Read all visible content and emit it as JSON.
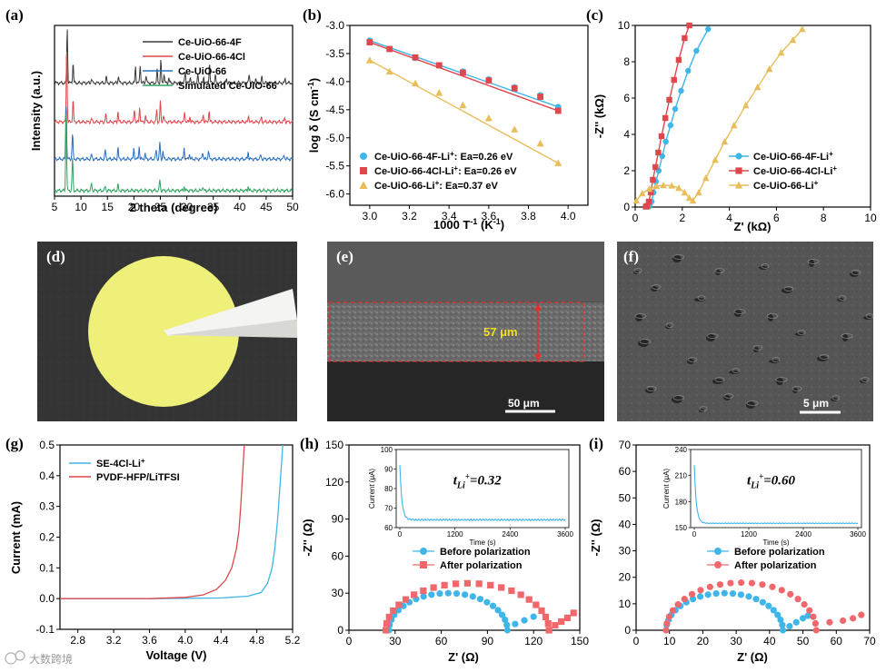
{
  "panel_labels": [
    "(a)",
    "(b)",
    "(c)",
    "(d)",
    "(e)",
    "(f)",
    "(g)",
    "(h)",
    "(i)"
  ],
  "colors": {
    "black": "#3a3a3a",
    "red": "#e0474c",
    "blue": "#2b6fbd",
    "green": "#2fa45e",
    "cyan": "#3fb5e8",
    "orange": "#e8be5a",
    "yellow": "#eef07a"
  },
  "chart_data": [
    {
      "panel": "a",
      "type": "line",
      "xlabel": "2 theta (degree)",
      "ylabel": "Intensity (a.u.)",
      "xlim": [
        5,
        50
      ],
      "xticks": [
        5,
        10,
        15,
        20,
        25,
        30,
        35,
        40,
        45,
        50
      ],
      "series": [
        {
          "name": "Ce-UiO-66-4F",
          "baseline": 3.05,
          "peaks": [
            [
              7.4,
              1.5
            ],
            [
              8.5,
              0.55
            ],
            [
              12.0,
              0.12
            ],
            [
              14.8,
              0.15
            ],
            [
              17.1,
              0.2
            ],
            [
              20.3,
              0.45
            ],
            [
              21.2,
              0.5
            ],
            [
              22.3,
              0.22
            ],
            [
              24.4,
              0.35
            ],
            [
              25.1,
              0.6
            ],
            [
              25.7,
              0.25
            ],
            [
              26.6,
              0.15
            ],
            [
              29.7,
              0.32
            ],
            [
              30.7,
              0.18
            ],
            [
              32.1,
              0.2
            ],
            [
              33.2,
              0.15
            ],
            [
              34.3,
              0.55
            ],
            [
              35.4,
              0.2
            ],
            [
              37.5,
              0.12
            ],
            [
              41.8,
              0.25
            ],
            [
              43.0,
              0.12
            ],
            [
              44.2,
              0.15
            ],
            [
              48.6,
              0.1
            ]
          ]
        },
        {
          "name": "Ce-UiO-66-4Cl",
          "baseline": 2.0,
          "peaks": [
            [
              7.3,
              2.1
            ],
            [
              8.5,
              0.6
            ],
            [
              12.0,
              0.1
            ],
            [
              14.7,
              0.2
            ],
            [
              17.0,
              0.28
            ],
            [
              20.1,
              0.35
            ],
            [
              21.1,
              0.4
            ],
            [
              22.2,
              0.18
            ],
            [
              24.3,
              0.3
            ],
            [
              25.0,
              0.55
            ],
            [
              25.6,
              0.2
            ],
            [
              29.6,
              0.28
            ],
            [
              30.6,
              0.15
            ],
            [
              33.1,
              0.2
            ],
            [
              34.2,
              0.3
            ],
            [
              41.7,
              0.18
            ],
            [
              44.1,
              0.12
            ],
            [
              48.5,
              0.12
            ]
          ]
        },
        {
          "name": "Ce-UiO-66",
          "baseline": 1.0,
          "peaks": [
            [
              7.2,
              1.6
            ],
            [
              8.4,
              0.7
            ],
            [
              12.0,
              0.12
            ],
            [
              14.6,
              0.25
            ],
            [
              17.0,
              0.3
            ],
            [
              20.0,
              0.3
            ],
            [
              21.0,
              0.35
            ],
            [
              22.1,
              0.15
            ],
            [
              24.2,
              0.25
            ],
            [
              24.9,
              0.45
            ],
            [
              25.5,
              0.22
            ],
            [
              29.5,
              0.3
            ],
            [
              30.5,
              0.15
            ],
            [
              33.0,
              0.2
            ],
            [
              34.1,
              0.25
            ],
            [
              41.6,
              0.2
            ],
            [
              44.0,
              0.12
            ],
            [
              48.4,
              0.12
            ]
          ]
        },
        {
          "name": "Simulated Ce-UiO-66",
          "baseline": 0.15,
          "peaks": [
            [
              7.2,
              2.3
            ],
            [
              8.4,
              0.9
            ],
            [
              12.0,
              0.2
            ],
            [
              14.6,
              0.12
            ],
            [
              17.0,
              0.15
            ],
            [
              24.9,
              0.3
            ],
            [
              29.5,
              0.12
            ],
            [
              33.0,
              0.12
            ],
            [
              41.6,
              0.12
            ]
          ]
        }
      ]
    },
    {
      "panel": "b",
      "type": "line",
      "xlabel": "1000 T",
      "xlabel_sup": "-1",
      "xlabel_tail": " (K",
      "xlabel_sup2": "-1",
      "xlabel_end": ")",
      "ylabel": "log δ (S cm",
      "ylabel_sup": "-1",
      "ylabel_end": ")",
      "xlim": [
        2.9,
        4.1
      ],
      "ylim": [
        -6.2,
        -3.0
      ],
      "xticks": [
        3.0,
        3.2,
        3.4,
        3.6,
        3.8,
        4.0
      ],
      "yticks": [
        -3.0,
        -3.5,
        -4.0,
        -4.5,
        -5.0,
        -5.5,
        -6.0
      ],
      "x": [
        3.0,
        3.1,
        3.23,
        3.35,
        3.47,
        3.6,
        3.73,
        3.86,
        3.95
      ],
      "series": [
        {
          "name": "Ce-UiO-66-4F-Li",
          "sup": "+",
          "tail": ": Ea=0.26 eV",
          "marker": "circle",
          "values": [
            -3.27,
            -3.42,
            -3.58,
            -3.71,
            -3.82,
            -3.96,
            -4.1,
            -4.24,
            -4.45
          ]
        },
        {
          "name": "Ce-UiO-66-4Cl-Li",
          "sup": "+",
          "tail": ": Ea=0.26 eV",
          "marker": "square",
          "values": [
            -3.3,
            -3.42,
            -3.57,
            -3.71,
            -3.84,
            -3.98,
            -4.12,
            -4.27,
            -4.52
          ]
        },
        {
          "name": "Ce-UiO-66-Li",
          "sup": "+",
          "tail": ": Ea=0.37 eV",
          "marker": "triangle",
          "values": [
            -3.62,
            -3.82,
            -4.03,
            -4.2,
            -4.42,
            -4.65,
            -4.85,
            -5.1,
            -5.45
          ]
        }
      ]
    },
    {
      "panel": "c",
      "type": "scatter",
      "xlabel": "Z' (kΩ)",
      "ylabel": "-Z'' (kΩ)",
      "xlim": [
        0,
        10
      ],
      "ylim": [
        0,
        10
      ],
      "xticks": [
        0,
        2,
        4,
        6,
        8,
        10
      ],
      "yticks": [
        0,
        2,
        4,
        6,
        8,
        10
      ],
      "series": [
        {
          "name": "Ce-UiO-66-4F-Li",
          "sup": "+",
          "marker": "circle",
          "points": [
            [
              0.58,
              0.02
            ],
            [
              0.62,
              0.08
            ],
            [
              0.7,
              0.3
            ],
            [
              0.78,
              0.8
            ],
            [
              0.88,
              1.4
            ],
            [
              1.0,
              2.0
            ],
            [
              1.15,
              2.8
            ],
            [
              1.3,
              3.6
            ],
            [
              1.5,
              4.5
            ],
            [
              1.7,
              5.4
            ],
            [
              1.95,
              6.4
            ],
            [
              2.25,
              7.5
            ],
            [
              2.6,
              8.6
            ],
            [
              3.1,
              9.8
            ]
          ]
        },
        {
          "name": "Ce-UiO-66-4Cl-Li",
          "sup": "+",
          "marker": "square",
          "points": [
            [
              0.45,
              0.02
            ],
            [
              0.5,
              0.06
            ],
            [
              0.58,
              0.3
            ],
            [
              0.66,
              0.8
            ],
            [
              0.75,
              1.5
            ],
            [
              0.86,
              2.2
            ],
            [
              0.98,
              3.0
            ],
            [
              1.12,
              3.9
            ],
            [
              1.28,
              4.9
            ],
            [
              1.45,
              5.9
            ],
            [
              1.65,
              7.0
            ],
            [
              1.85,
              8.1
            ],
            [
              2.1,
              9.3
            ],
            [
              2.3,
              10.0
            ]
          ]
        },
        {
          "name": "Ce-UiO-66-Li",
          "sup": "+",
          "marker": "triangle",
          "points": [
            [
              0.05,
              0.35
            ],
            [
              0.3,
              0.75
            ],
            [
              0.6,
              1.0
            ],
            [
              0.9,
              1.15
            ],
            [
              1.2,
              1.2
            ],
            [
              1.55,
              1.18
            ],
            [
              1.85,
              1.05
            ],
            [
              2.1,
              0.8
            ],
            [
              2.3,
              0.5
            ],
            [
              2.45,
              0.35
            ],
            [
              2.7,
              0.8
            ],
            [
              3.0,
              1.6
            ],
            [
              3.4,
              2.6
            ],
            [
              3.8,
              3.6
            ],
            [
              4.2,
              4.5
            ],
            [
              4.7,
              5.6
            ],
            [
              5.2,
              6.6
            ],
            [
              5.7,
              7.6
            ],
            [
              6.2,
              8.5
            ],
            [
              6.7,
              9.2
            ],
            [
              7.1,
              9.8
            ]
          ]
        }
      ]
    },
    {
      "panel": "g",
      "type": "line",
      "xlabel": "Voltage (V)",
      "ylabel": "Current (mA)",
      "xlim": [
        2.6,
        5.2
      ],
      "ylim": [
        -0.1,
        0.5
      ],
      "xticks": [
        2.8,
        3.2,
        3.6,
        4.0,
        4.4,
        4.8,
        5.2
      ],
      "yticks": [
        -0.1,
        0.0,
        0.1,
        0.2,
        0.3,
        0.4,
        0.5
      ],
      "series": [
        {
          "name": "SE-4Cl-Li",
          "sup": "+",
          "x": [
            2.6,
            3.6,
            4.4,
            4.7,
            4.85,
            4.92,
            4.97,
            5.0,
            5.03,
            5.06,
            5.09
          ],
          "values": [
            0.0,
            0.0,
            0.002,
            0.008,
            0.02,
            0.05,
            0.1,
            0.16,
            0.25,
            0.37,
            0.5
          ]
        },
        {
          "name": "PVDF-HFP/LiTFSI",
          "sup": "",
          "x": [
            2.6,
            3.6,
            4.0,
            4.2,
            4.35,
            4.45,
            4.52,
            4.57,
            4.6,
            4.62,
            4.64,
            4.66
          ],
          "values": [
            0.0,
            0.0,
            0.004,
            0.012,
            0.03,
            0.06,
            0.1,
            0.16,
            0.22,
            0.3,
            0.4,
            0.5
          ]
        }
      ]
    },
    {
      "panel": "h",
      "type": "scatter",
      "xlabel": "Z' (Ω)",
      "ylabel": "-Z'' (Ω)",
      "xlim": [
        0,
        150
      ],
      "ylim": [
        0,
        150
      ],
      "xticks": [
        0,
        30,
        60,
        90,
        120,
        150
      ],
      "yticks": [
        0,
        30,
        60,
        90,
        120,
        150
      ],
      "series": [
        {
          "name": "Before polarization",
          "marker": "circle",
          "semicircle": [
            26,
            103,
            30
          ],
          "tail": [
            [
              108,
              5
            ],
            [
              114,
              8
            ],
            [
              120,
              11
            ]
          ]
        },
        {
          "name": "After polarization",
          "marker": "square",
          "semicircle": [
            24,
            130,
            38
          ],
          "tail": [
            [
              134,
              4
            ],
            [
              138,
              7
            ],
            [
              142,
              10
            ],
            [
              146,
              14
            ]
          ]
        }
      ],
      "inset": {
        "xlabel": "Time (s)",
        "ylabel": "Current (μA)",
        "xlim": [
          0,
          3600
        ],
        "ylim": [
          60,
          100
        ],
        "xticks": [
          0,
          1200,
          2400,
          3600
        ],
        "yticks": [
          60,
          70,
          80,
          90,
          100
        ],
        "initial": 92,
        "steady": 64,
        "annotation_var": "t",
        "annotation_sub": "Li",
        "annotation_sup": "+",
        "annotation_value": "=0.32"
      }
    },
    {
      "panel": "i",
      "type": "scatter",
      "xlabel": "Z' (Ω)",
      "ylabel": "-Z'' (Ω)",
      "xlim": [
        0,
        70
      ],
      "ylim": [
        0,
        70
      ],
      "xticks": [
        0,
        10,
        20,
        30,
        40,
        50,
        60,
        70
      ],
      "yticks": [
        0,
        10,
        20,
        30,
        40,
        50,
        60,
        70
      ],
      "series": [
        {
          "name": "Before polarization",
          "marker": "circle",
          "semicircle": [
            9,
            44,
            14
          ],
          "tail": [
            [
              46,
              1.5
            ],
            [
              48,
              3
            ],
            [
              50,
              4.5
            ],
            [
              51.5,
              5.5
            ]
          ]
        },
        {
          "name": "After polarization",
          "marker": "circle",
          "semicircle": [
            9,
            54,
            18
          ],
          "tail": [
            [
              58,
              3
            ],
            [
              62,
              3.6
            ],
            [
              65,
              4.5
            ],
            [
              67.5,
              5.8
            ]
          ]
        }
      ],
      "inset": {
        "xlabel": "Time (s)",
        "ylabel": "Current (μA)",
        "xlim": [
          0,
          3600
        ],
        "ylim": [
          150,
          240
        ],
        "xticks": [
          0,
          1200,
          2400,
          3600
        ],
        "yticks": [
          150,
          180,
          210,
          240
        ],
        "initial": 222,
        "steady": 155,
        "annotation_var": "t",
        "annotation_sub": "Li",
        "annotation_sup": "+",
        "annotation_value": "=0.60"
      }
    }
  ],
  "images": {
    "e": {
      "thickness_label": "57 μm",
      "scale_bar": "50 μm"
    },
    "f": {
      "scale_bar": "5 μm"
    }
  },
  "watermark": "大数跨境"
}
